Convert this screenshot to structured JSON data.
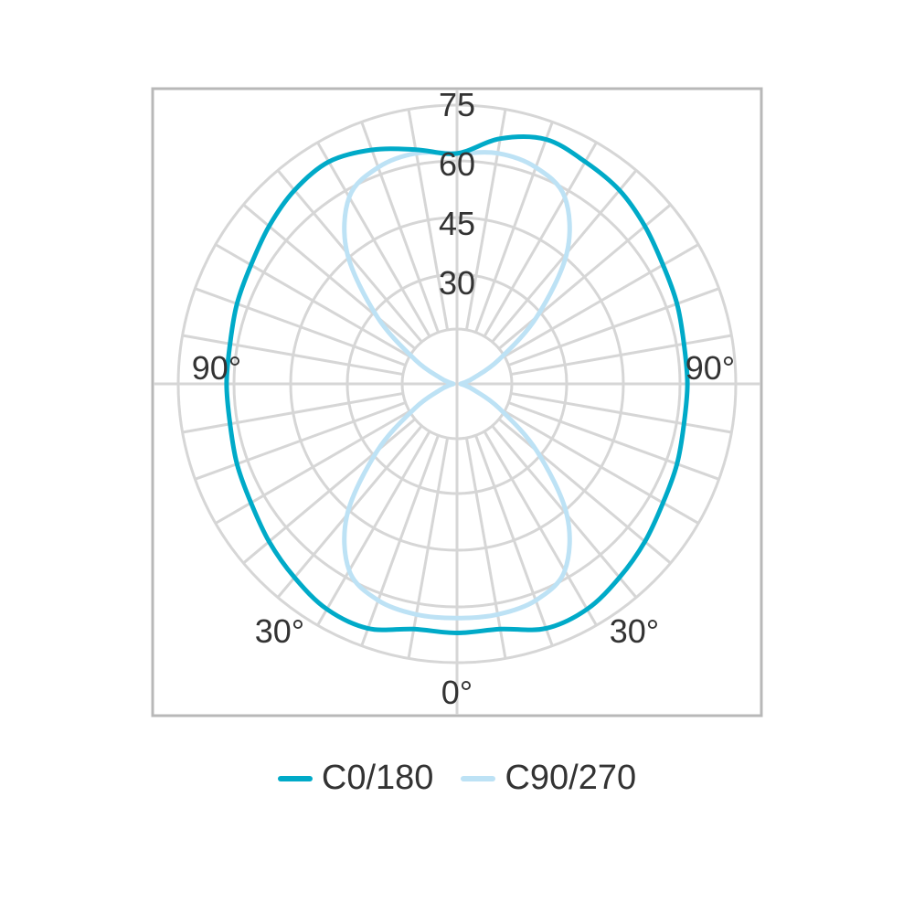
{
  "chart_data": {
    "type": "polar",
    "unit_note": "",
    "radial_ticks": [
      "30",
      "45",
      "60",
      "75"
    ],
    "angle_labels": {
      "left": "90°",
      "right": "90°",
      "bottom_left": "30°",
      "bottom_right": "30°",
      "bottom": "0°"
    },
    "rmax": 75,
    "grid_step_deg": 10,
    "series": [
      {
        "name": "C0/180",
        "color": "#00aac8",
        "points": [
          {
            "angle": 0,
            "value": 67
          },
          {
            "angle": 10,
            "value": 67
          },
          {
            "angle": 20,
            "value": 70
          },
          {
            "angle": 30,
            "value": 70
          },
          {
            "angle": 40,
            "value": 68
          },
          {
            "angle": 50,
            "value": 66
          },
          {
            "angle": 60,
            "value": 64
          },
          {
            "angle": 70,
            "value": 63
          },
          {
            "angle": 80,
            "value": 62
          },
          {
            "angle": 90,
            "value": 62
          },
          {
            "angle": 100,
            "value": 62
          },
          {
            "angle": 110,
            "value": 63
          },
          {
            "angle": 120,
            "value": 64
          },
          {
            "angle": 130,
            "value": 66
          },
          {
            "angle": 140,
            "value": 68
          },
          {
            "angle": 150,
            "value": 69
          },
          {
            "angle": 160,
            "value": 70
          },
          {
            "angle": 170,
            "value": 67
          },
          {
            "angle": 180,
            "value": 62
          },
          {
            "angle": 190,
            "value": 64
          },
          {
            "angle": 200,
            "value": 67
          },
          {
            "angle": 210,
            "value": 69
          },
          {
            "angle": 220,
            "value": 68
          },
          {
            "angle": 230,
            "value": 66
          },
          {
            "angle": 240,
            "value": 64
          },
          {
            "angle": 250,
            "value": 63
          },
          {
            "angle": 260,
            "value": 62
          },
          {
            "angle": 270,
            "value": 62
          },
          {
            "angle": 280,
            "value": 62
          },
          {
            "angle": 290,
            "value": 63
          },
          {
            "angle": 300,
            "value": 64
          },
          {
            "angle": 310,
            "value": 66
          },
          {
            "angle": 320,
            "value": 68
          },
          {
            "angle": 330,
            "value": 70
          },
          {
            "angle": 340,
            "value": 70
          },
          {
            "angle": 350,
            "value": 67
          }
        ]
      },
      {
        "name": "C90/270",
        "color": "#bde2f5",
        "points": [
          {
            "angle": 0,
            "value": 63
          },
          {
            "angle": 10,
            "value": 63
          },
          {
            "angle": 20,
            "value": 62
          },
          {
            "angle": 30,
            "value": 58
          },
          {
            "angle": 40,
            "value": 46
          },
          {
            "angle": 50,
            "value": 28
          },
          {
            "angle": 60,
            "value": 13
          },
          {
            "angle": 70,
            "value": 5
          },
          {
            "angle": 80,
            "value": 2
          },
          {
            "angle": 90,
            "value": 1
          },
          {
            "angle": 100,
            "value": 2
          },
          {
            "angle": 110,
            "value": 5
          },
          {
            "angle": 120,
            "value": 13
          },
          {
            "angle": 130,
            "value": 28
          },
          {
            "angle": 140,
            "value": 46
          },
          {
            "angle": 150,
            "value": 58
          },
          {
            "angle": 160,
            "value": 62
          },
          {
            "angle": 170,
            "value": 63
          },
          {
            "angle": 180,
            "value": 62
          },
          {
            "angle": 190,
            "value": 63
          },
          {
            "angle": 200,
            "value": 62
          },
          {
            "angle": 210,
            "value": 58
          },
          {
            "angle": 220,
            "value": 46
          },
          {
            "angle": 230,
            "value": 28
          },
          {
            "angle": 240,
            "value": 13
          },
          {
            "angle": 250,
            "value": 5
          },
          {
            "angle": 260,
            "value": 2
          },
          {
            "angle": 270,
            "value": 1
          },
          {
            "angle": 280,
            "value": 2
          },
          {
            "angle": 290,
            "value": 5
          },
          {
            "angle": 300,
            "value": 13
          },
          {
            "angle": 310,
            "value": 28
          },
          {
            "angle": 320,
            "value": 46
          },
          {
            "angle": 330,
            "value": 58
          },
          {
            "angle": 340,
            "value": 62
          },
          {
            "angle": 350,
            "value": 63
          }
        ]
      }
    ],
    "legend_position": "bottom"
  },
  "legend": {
    "c0_label": "C0/180",
    "c90_label": "C90/270"
  }
}
